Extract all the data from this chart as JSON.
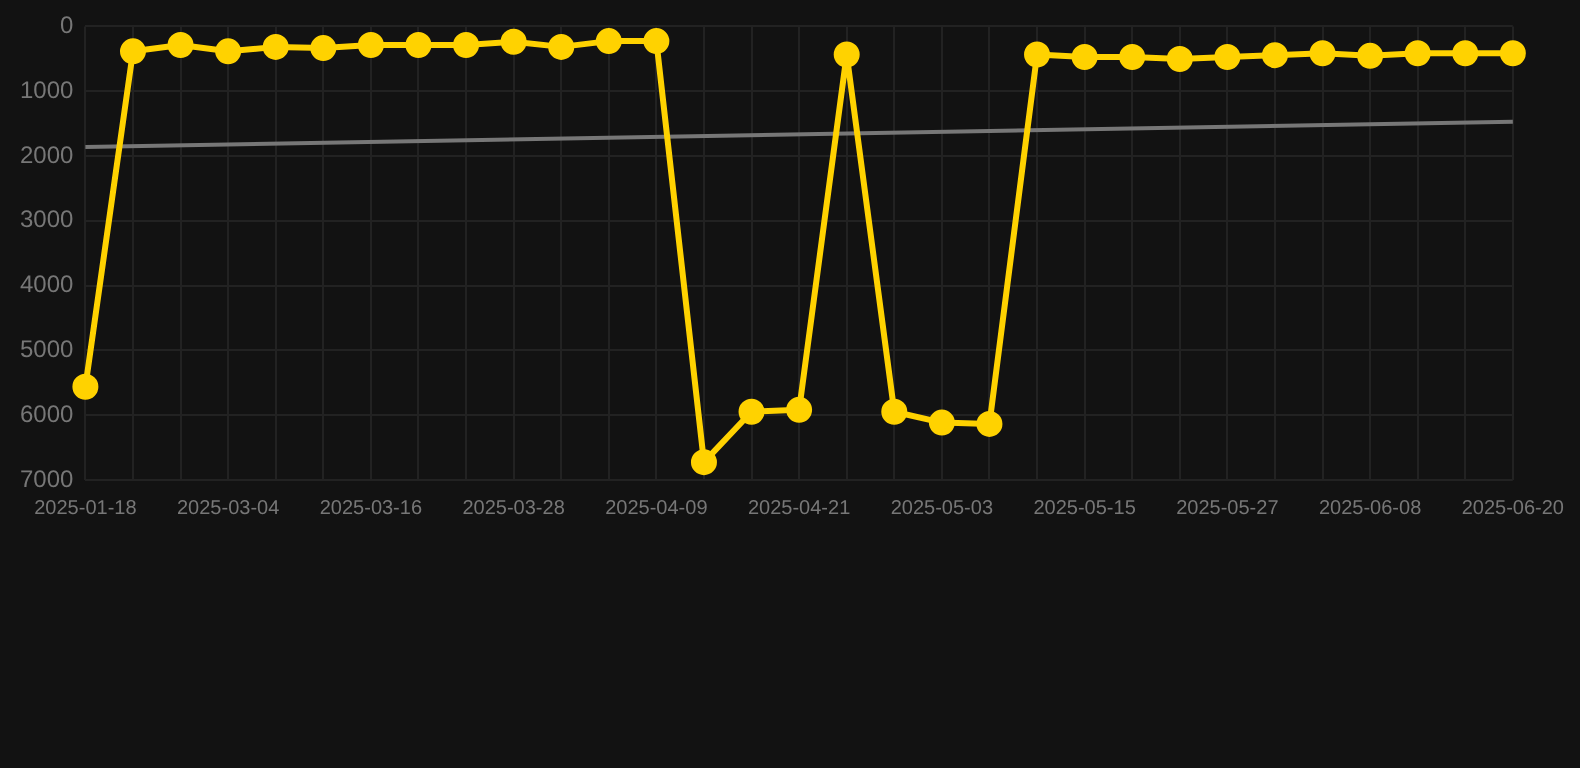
{
  "chart_data": {
    "type": "line",
    "categories": [
      "2025-01-18",
      null,
      null,
      "2025-03-04",
      null,
      null,
      "2025-03-16",
      null,
      null,
      "2025-03-28",
      null,
      null,
      "2025-04-09",
      null,
      null,
      "2025-04-21",
      null,
      null,
      "2025-05-03",
      null,
      null,
      "2025-05-15",
      null,
      null,
      "2025-05-27",
      null,
      null,
      "2025-06-08",
      null,
      null,
      "2025-06-20"
    ],
    "series": [
      {
        "color": "#ffd200",
        "marker": "circle",
        "values": [
          5560,
          385,
          286,
          385,
          316,
          335,
          286,
          286,
          286,
          237,
          316,
          227,
          227,
          6725,
          5947,
          5917,
          434,
          5947,
          6114,
          6134,
          434,
          473,
          473,
          503,
          473,
          444,
          414,
          454,
          414,
          414,
          414
        ]
      },
      {
        "color": "#777777",
        "marker": "none",
        "values": [
          1860,
          null,
          null,
          null,
          null,
          null,
          null,
          null,
          null,
          null,
          null,
          null,
          null,
          null,
          null,
          null,
          null,
          null,
          null,
          null,
          null,
          null,
          null,
          null,
          null,
          null,
          null,
          null,
          null,
          null,
          1470
        ]
      }
    ],
    "ylim": [
      7000,
      0
    ],
    "yticks": [
      0,
      1000,
      2000,
      3000,
      4000,
      5000,
      6000,
      7000
    ],
    "grid": true,
    "legend": false,
    "line_style": "solid"
  }
}
